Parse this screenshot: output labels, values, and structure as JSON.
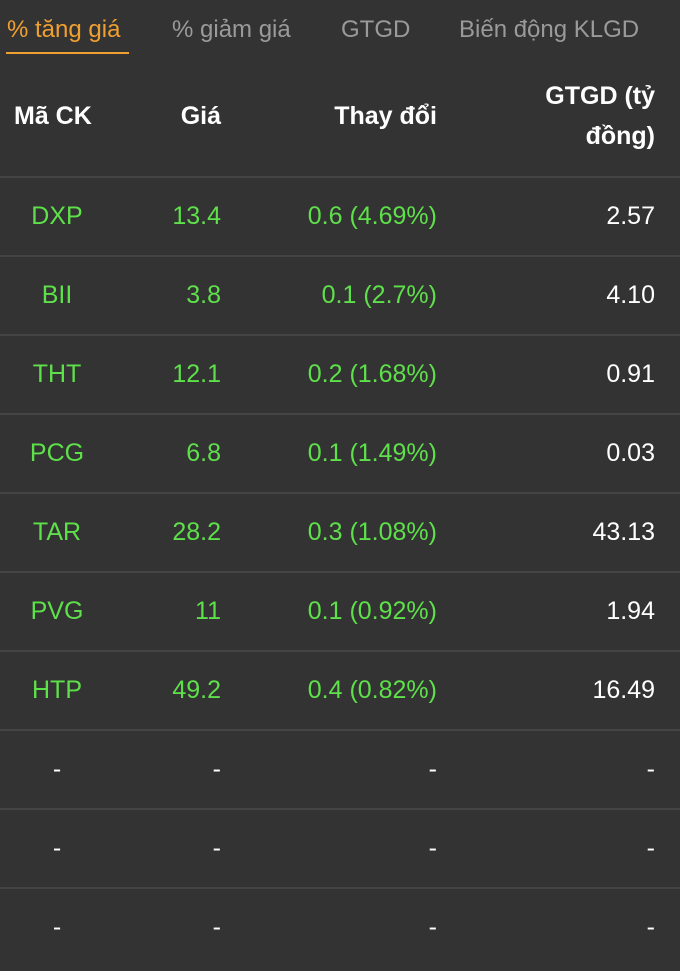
{
  "tabs": [
    {
      "label": "% tăng giá",
      "active": true
    },
    {
      "label": "% giảm giá"
    },
    {
      "label": "GTGD"
    },
    {
      "label": "Biến động KLGD"
    }
  ],
  "colors": {
    "accent": "#f0a030",
    "up": "#5ee04a",
    "background": "#333333"
  },
  "table": {
    "headers": [
      "Mã CK",
      "Giá",
      "Thay đổi",
      "GTGD (tỷ",
      "đồng)"
    ],
    "rows": [
      [
        "DXP",
        "13.4",
        "0.6 (4.69%)",
        "2.57"
      ],
      [
        "BII",
        "3.8",
        "0.1 (2.7%)",
        "4.10"
      ],
      [
        "THT",
        "12.1",
        "0.2 (1.68%)",
        "0.91"
      ],
      [
        "PCG",
        "6.8",
        "0.1 (1.49%)",
        "0.03"
      ],
      [
        "TAR",
        "28.2",
        "0.3 (1.08%)",
        "43.13"
      ],
      [
        "PVG",
        "11",
        "0.1 (0.92%)",
        "1.94"
      ],
      [
        "HTP",
        "49.2",
        "0.4 (0.82%)",
        "16.49"
      ],
      [
        "-",
        "-",
        "-",
        "-"
      ],
      [
        "-",
        "-",
        "-",
        "-"
      ],
      [
        "-",
        "-",
        "-",
        "-"
      ]
    ]
  }
}
